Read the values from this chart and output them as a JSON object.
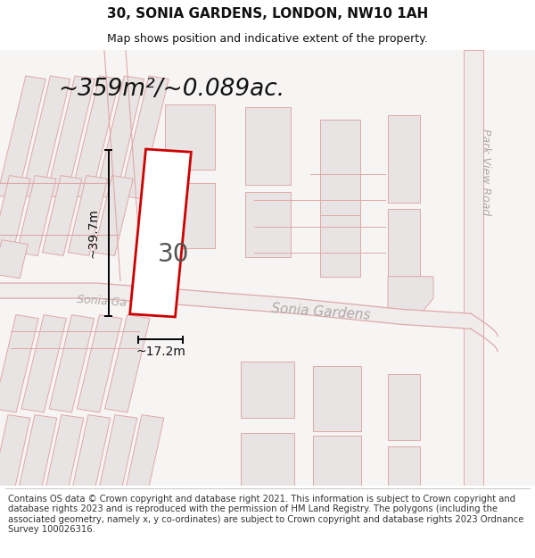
{
  "title": "30, SONIA GARDENS, LONDON, NW10 1AH",
  "subtitle": "Map shows position and indicative extent of the property.",
  "area_text": "~359m²/~0.089ac.",
  "width_label": "~17.2m",
  "height_label": "~39.7m",
  "property_number": "30",
  "road_label_sonia": "Sonia Gardens",
  "road_label_sonia2": "Sonia Ga",
  "road_label_park": "Park View Road",
  "footer": "Contains OS data © Crown copyright and database right 2021. This information is subject to Crown copyright and database rights 2023 and is reproduced with the permission of HM Land Registry. The polygons (including the associated geometry, namely x, y co-ordinates) are subject to Crown copyright and database rights 2023 Ordnance Survey 100026316.",
  "map_bg": "#f7f4f4",
  "block_fill": "#e8e4e4",
  "block_edge": "#e0a8a8",
  "road_line": "#e0a8a8",
  "road_fill": "#f0ecec",
  "prop_edge": "#cc0000",
  "prop_fill": "#ffffff",
  "dim_color": "#111111",
  "text_gray": "#aaaaaa",
  "header_title_fs": 11,
  "header_sub_fs": 9,
  "footer_fs": 7.2,
  "area_fs": 19,
  "dim_label_fs": 10,
  "prop_num_fs": 20,
  "road_fs": 11,
  "park_road_fs": 9
}
